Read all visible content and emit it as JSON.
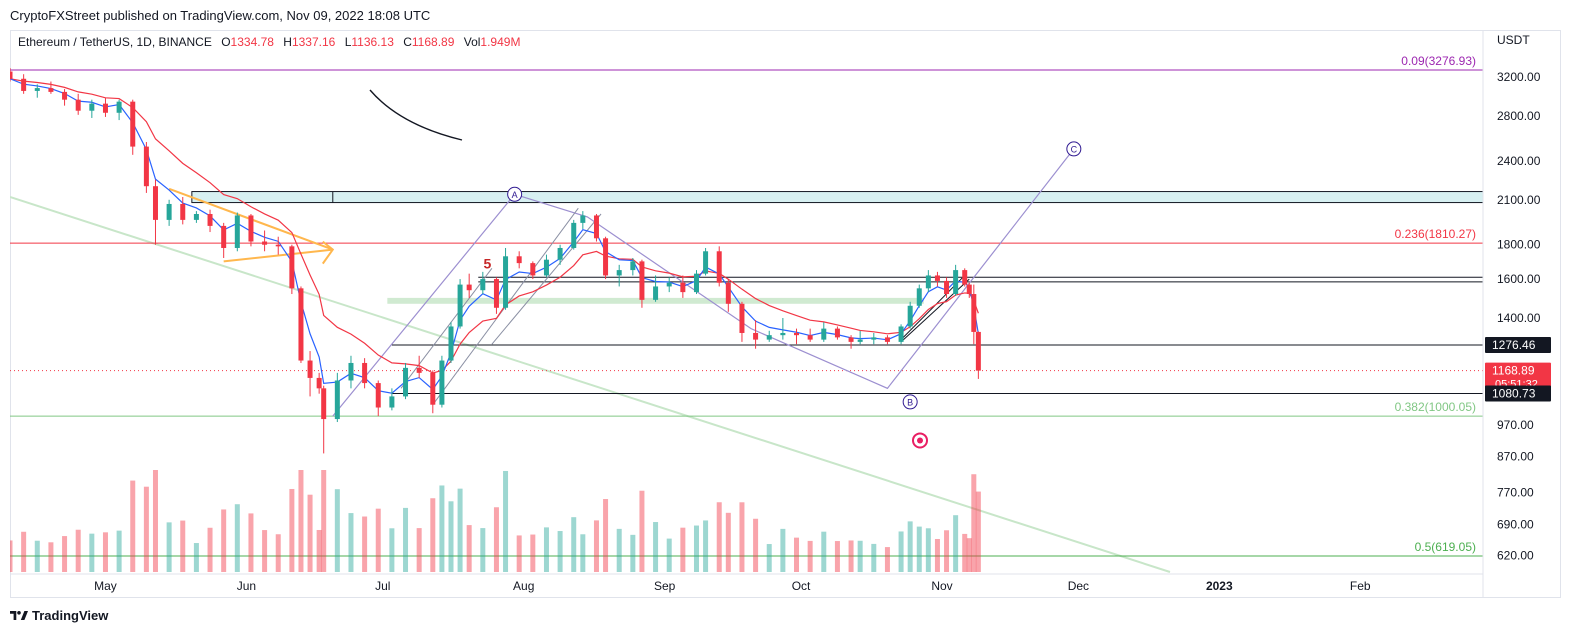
{
  "header": {
    "published": "CryptoFXStreet published on TradingView.com, Nov 09, 2022 18:08 UTC"
  },
  "symbol": {
    "name": "Ethereum / TetherUS, 1D, BINANCE",
    "open_key": "O",
    "open": "1334.78",
    "high_key": "H",
    "high": "1337.16",
    "low_key": "L",
    "low": "1136.13",
    "close_key": "C",
    "close": "1168.89",
    "vol_key": "Vol",
    "vol": "1.949M"
  },
  "currency": "USDT",
  "footer": {
    "brand": "TradingView"
  },
  "colors": {
    "up": "#26a69a",
    "down": "#f23645",
    "ema_fast": "#2962ff",
    "ema_slow": "#f23645",
    "fib_top": "#9c27b0",
    "fib_236": "#f23645",
    "fib_382": "#81c784",
    "fib_50": "#4caf50"
  },
  "chart_data": {
    "type": "candlestick",
    "y_scale": "log",
    "ylim": [
      590,
      3450
    ],
    "x_range": [
      "2022-04-10",
      "2023-02-28"
    ],
    "y_ticks": [
      "3200.00",
      "2800.00",
      "2400.00",
      "2100.00",
      "1800.00",
      "1600.00",
      "1400.00",
      "970.00",
      "870.00",
      "770.00",
      "690.00",
      "620.00"
    ],
    "x_ticks": [
      {
        "label": "May",
        "date": "2022-05-01"
      },
      {
        "label": "Jun",
        "date": "2022-06-01"
      },
      {
        "label": "Jul",
        "date": "2022-07-01"
      },
      {
        "label": "Aug",
        "date": "2022-08-01"
      },
      {
        "label": "Sep",
        "date": "2022-09-01"
      },
      {
        "label": "Oct",
        "date": "2022-10-01"
      },
      {
        "label": "Nov",
        "date": "2022-11-01"
      },
      {
        "label": "Dec",
        "date": "2022-12-01"
      },
      {
        "label": "2023",
        "date": "2023-01-01"
      },
      {
        "label": "Feb",
        "date": "2023-02-01"
      }
    ],
    "price_badges": [
      {
        "label": "1276.46",
        "value": 1276.46,
        "style": "dark"
      },
      {
        "label": "1168.89",
        "value": 1168.89,
        "style": "red",
        "sub": "05:51:32"
      },
      {
        "label": "1080.73",
        "value": 1080.73,
        "style": "dark"
      }
    ],
    "fib_levels": [
      {
        "label": "0.09(3276.93)",
        "value": 3276.93,
        "color": "#9c27b0"
      },
      {
        "label": "0.236(1810.27)",
        "value": 1810.27,
        "color": "#f23645"
      },
      {
        "label": "0.382(1000.05)",
        "value": 1000.05,
        "color": "#81c784"
      },
      {
        "label": "0.5(619.05)",
        "value": 619.05,
        "color": "#4caf50"
      }
    ],
    "horizontal_lines": [
      1276.46,
      1080.73,
      1585,
      1610
    ],
    "zones": [
      {
        "name": "resistance-zone",
        "from": 2080,
        "to": 2160,
        "start": "2022-05-20",
        "color": "#d7f0f2"
      },
      {
        "name": "green-zone",
        "from": 1470,
        "to": 1500,
        "start": "2022-07-02",
        "end": "2022-10-28",
        "color": "#c8e6c9"
      }
    ],
    "wave_labels": [
      {
        "label": "A",
        "date": "2022-07-30",
        "value": 2140
      },
      {
        "label": "B",
        "date": "2022-10-25",
        "value": 1050
      },
      {
        "label": "C",
        "date": "2022-11-30",
        "value": 2500
      },
      {
        "label": "5",
        "date": "2022-07-24",
        "value": 1660
      }
    ],
    "candles": [
      {
        "t": "2022-04-10",
        "o": 3260,
        "h": 3300,
        "l": 3150,
        "c": 3180
      },
      {
        "t": "2022-04-13",
        "o": 3180,
        "h": 3230,
        "l": 3020,
        "c": 3050
      },
      {
        "t": "2022-04-16",
        "o": 3050,
        "h": 3120,
        "l": 2980,
        "c": 3080
      },
      {
        "t": "2022-04-19",
        "o": 3080,
        "h": 3150,
        "l": 3020,
        "c": 3040
      },
      {
        "t": "2022-04-22",
        "o": 3040,
        "h": 3070,
        "l": 2900,
        "c": 2960
      },
      {
        "t": "2022-04-25",
        "o": 2960,
        "h": 3020,
        "l": 2810,
        "c": 2850
      },
      {
        "t": "2022-04-28",
        "o": 2850,
        "h": 2960,
        "l": 2780,
        "c": 2920
      },
      {
        "t": "2022-05-01",
        "o": 2920,
        "h": 2980,
        "l": 2790,
        "c": 2830
      },
      {
        "t": "2022-05-04",
        "o": 2830,
        "h": 2960,
        "l": 2760,
        "c": 2940
      },
      {
        "t": "2022-05-07",
        "o": 2940,
        "h": 2960,
        "l": 2450,
        "c": 2520
      },
      {
        "t": "2022-05-10",
        "o": 2520,
        "h": 2560,
        "l": 2150,
        "c": 2200
      },
      {
        "t": "2022-05-12",
        "o": 2200,
        "h": 2250,
        "l": 1800,
        "c": 1960
      },
      {
        "t": "2022-05-15",
        "o": 1960,
        "h": 2100,
        "l": 1920,
        "c": 2070
      },
      {
        "t": "2022-05-18",
        "o": 2070,
        "h": 2120,
        "l": 1930,
        "c": 1960
      },
      {
        "t": "2022-05-21",
        "o": 1960,
        "h": 2020,
        "l": 1940,
        "c": 2000
      },
      {
        "t": "2022-05-24",
        "o": 2000,
        "h": 2030,
        "l": 1880,
        "c": 1920
      },
      {
        "t": "2022-05-27",
        "o": 1920,
        "h": 1940,
        "l": 1720,
        "c": 1780
      },
      {
        "t": "2022-05-30",
        "o": 1780,
        "h": 2010,
        "l": 1760,
        "c": 1990
      },
      {
        "t": "2022-06-02",
        "o": 1990,
        "h": 2000,
        "l": 1790,
        "c": 1820
      },
      {
        "t": "2022-06-05",
        "o": 1820,
        "h": 1890,
        "l": 1760,
        "c": 1800
      },
      {
        "t": "2022-06-08",
        "o": 1800,
        "h": 1850,
        "l": 1740,
        "c": 1790
      },
      {
        "t": "2022-06-11",
        "o": 1790,
        "h": 1800,
        "l": 1520,
        "c": 1550
      },
      {
        "t": "2022-06-13",
        "o": 1550,
        "h": 1560,
        "l": 1200,
        "c": 1210
      },
      {
        "t": "2022-06-15",
        "o": 1210,
        "h": 1250,
        "l": 1070,
        "c": 1140
      },
      {
        "t": "2022-06-17",
        "o": 1140,
        "h": 1160,
        "l": 1080,
        "c": 1100
      },
      {
        "t": "2022-06-18",
        "o": 1100,
        "h": 1110,
        "l": 880,
        "c": 990
      },
      {
        "t": "2022-06-21",
        "o": 990,
        "h": 1160,
        "l": 980,
        "c": 1130
      },
      {
        "t": "2022-06-24",
        "o": 1130,
        "h": 1230,
        "l": 1100,
        "c": 1200
      },
      {
        "t": "2022-06-27",
        "o": 1200,
        "h": 1220,
        "l": 1100,
        "c": 1120
      },
      {
        "t": "2022-06-30",
        "o": 1120,
        "h": 1130,
        "l": 1000,
        "c": 1030
      },
      {
        "t": "2022-07-03",
        "o": 1030,
        "h": 1100,
        "l": 1020,
        "c": 1070
      },
      {
        "t": "2022-07-06",
        "o": 1070,
        "h": 1200,
        "l": 1060,
        "c": 1180
      },
      {
        "t": "2022-07-09",
        "o": 1180,
        "h": 1230,
        "l": 1140,
        "c": 1160
      },
      {
        "t": "2022-07-12",
        "o": 1160,
        "h": 1170,
        "l": 1010,
        "c": 1040
      },
      {
        "t": "2022-07-14",
        "o": 1040,
        "h": 1230,
        "l": 1030,
        "c": 1210
      },
      {
        "t": "2022-07-16",
        "o": 1210,
        "h": 1380,
        "l": 1200,
        "c": 1360
      },
      {
        "t": "2022-07-18",
        "o": 1360,
        "h": 1600,
        "l": 1350,
        "c": 1570
      },
      {
        "t": "2022-07-20",
        "o": 1570,
        "h": 1630,
        "l": 1500,
        "c": 1540
      },
      {
        "t": "2022-07-23",
        "o": 1540,
        "h": 1640,
        "l": 1520,
        "c": 1600
      },
      {
        "t": "2022-07-26",
        "o": 1600,
        "h": 1610,
        "l": 1420,
        "c": 1450
      },
      {
        "t": "2022-07-28",
        "o": 1450,
        "h": 1780,
        "l": 1440,
        "c": 1730
      },
      {
        "t": "2022-07-31",
        "o": 1730,
        "h": 1760,
        "l": 1660,
        "c": 1690
      },
      {
        "t": "2022-08-03",
        "o": 1690,
        "h": 1700,
        "l": 1600,
        "c": 1620
      },
      {
        "t": "2022-08-06",
        "o": 1620,
        "h": 1740,
        "l": 1610,
        "c": 1710
      },
      {
        "t": "2022-08-09",
        "o": 1710,
        "h": 1800,
        "l": 1680,
        "c": 1780
      },
      {
        "t": "2022-08-12",
        "o": 1780,
        "h": 1960,
        "l": 1770,
        "c": 1940
      },
      {
        "t": "2022-08-14",
        "o": 1940,
        "h": 2020,
        "l": 1900,
        "c": 1990
      },
      {
        "t": "2022-08-17",
        "o": 1990,
        "h": 2000,
        "l": 1820,
        "c": 1840
      },
      {
        "t": "2022-08-19",
        "o": 1840,
        "h": 1850,
        "l": 1600,
        "c": 1620
      },
      {
        "t": "2022-08-22",
        "o": 1620,
        "h": 1680,
        "l": 1560,
        "c": 1650
      },
      {
        "t": "2022-08-25",
        "o": 1650,
        "h": 1720,
        "l": 1620,
        "c": 1700
      },
      {
        "t": "2022-08-27",
        "o": 1700,
        "h": 1710,
        "l": 1450,
        "c": 1490
      },
      {
        "t": "2022-08-30",
        "o": 1490,
        "h": 1620,
        "l": 1480,
        "c": 1560
      },
      {
        "t": "2022-09-02",
        "o": 1560,
        "h": 1610,
        "l": 1530,
        "c": 1580
      },
      {
        "t": "2022-09-05",
        "o": 1580,
        "h": 1620,
        "l": 1500,
        "c": 1530
      },
      {
        "t": "2022-09-08",
        "o": 1530,
        "h": 1650,
        "l": 1520,
        "c": 1630
      },
      {
        "t": "2022-09-10",
        "o": 1630,
        "h": 1780,
        "l": 1620,
        "c": 1760
      },
      {
        "t": "2022-09-13",
        "o": 1760,
        "h": 1790,
        "l": 1560,
        "c": 1580
      },
      {
        "t": "2022-09-15",
        "o": 1580,
        "h": 1600,
        "l": 1430,
        "c": 1470
      },
      {
        "t": "2022-09-18",
        "o": 1470,
        "h": 1480,
        "l": 1290,
        "c": 1330
      },
      {
        "t": "2022-09-21",
        "o": 1330,
        "h": 1390,
        "l": 1260,
        "c": 1300
      },
      {
        "t": "2022-09-24",
        "o": 1300,
        "h": 1340,
        "l": 1290,
        "c": 1320
      },
      {
        "t": "2022-09-27",
        "o": 1320,
        "h": 1400,
        "l": 1300,
        "c": 1330
      },
      {
        "t": "2022-09-30",
        "o": 1330,
        "h": 1350,
        "l": 1280,
        "c": 1320
      },
      {
        "t": "2022-10-03",
        "o": 1320,
        "h": 1350,
        "l": 1290,
        "c": 1300
      },
      {
        "t": "2022-10-06",
        "o": 1300,
        "h": 1380,
        "l": 1290,
        "c": 1350
      },
      {
        "t": "2022-10-09",
        "o": 1350,
        "h": 1360,
        "l": 1300,
        "c": 1310
      },
      {
        "t": "2022-10-12",
        "o": 1310,
        "h": 1320,
        "l": 1260,
        "c": 1290
      },
      {
        "t": "2022-10-14",
        "o": 1290,
        "h": 1340,
        "l": 1280,
        "c": 1300
      },
      {
        "t": "2022-10-17",
        "o": 1300,
        "h": 1330,
        "l": 1280,
        "c": 1310
      },
      {
        "t": "2022-10-20",
        "o": 1310,
        "h": 1320,
        "l": 1280,
        "c": 1290
      },
      {
        "t": "2022-10-23",
        "o": 1290,
        "h": 1370,
        "l": 1280,
        "c": 1360
      },
      {
        "t": "2022-10-25",
        "o": 1360,
        "h": 1480,
        "l": 1350,
        "c": 1460
      },
      {
        "t": "2022-10-27",
        "o": 1460,
        "h": 1570,
        "l": 1450,
        "c": 1550
      },
      {
        "t": "2022-10-29",
        "o": 1550,
        "h": 1650,
        "l": 1530,
        "c": 1620
      },
      {
        "t": "2022-10-31",
        "o": 1620,
        "h": 1640,
        "l": 1560,
        "c": 1590
      },
      {
        "t": "2022-11-02",
        "o": 1590,
        "h": 1610,
        "l": 1500,
        "c": 1520
      },
      {
        "t": "2022-11-04",
        "o": 1520,
        "h": 1680,
        "l": 1510,
        "c": 1650
      },
      {
        "t": "2022-11-06",
        "o": 1650,
        "h": 1660,
        "l": 1560,
        "c": 1570
      },
      {
        "t": "2022-11-07",
        "o": 1570,
        "h": 1580,
        "l": 1500,
        "c": 1520
      },
      {
        "t": "2022-11-08",
        "o": 1520,
        "h": 1570,
        "l": 1280,
        "c": 1334.78
      },
      {
        "t": "2022-11-09",
        "o": 1334.78,
        "h": 1337.16,
        "l": 1136.13,
        "c": 1168.89
      }
    ]
  }
}
